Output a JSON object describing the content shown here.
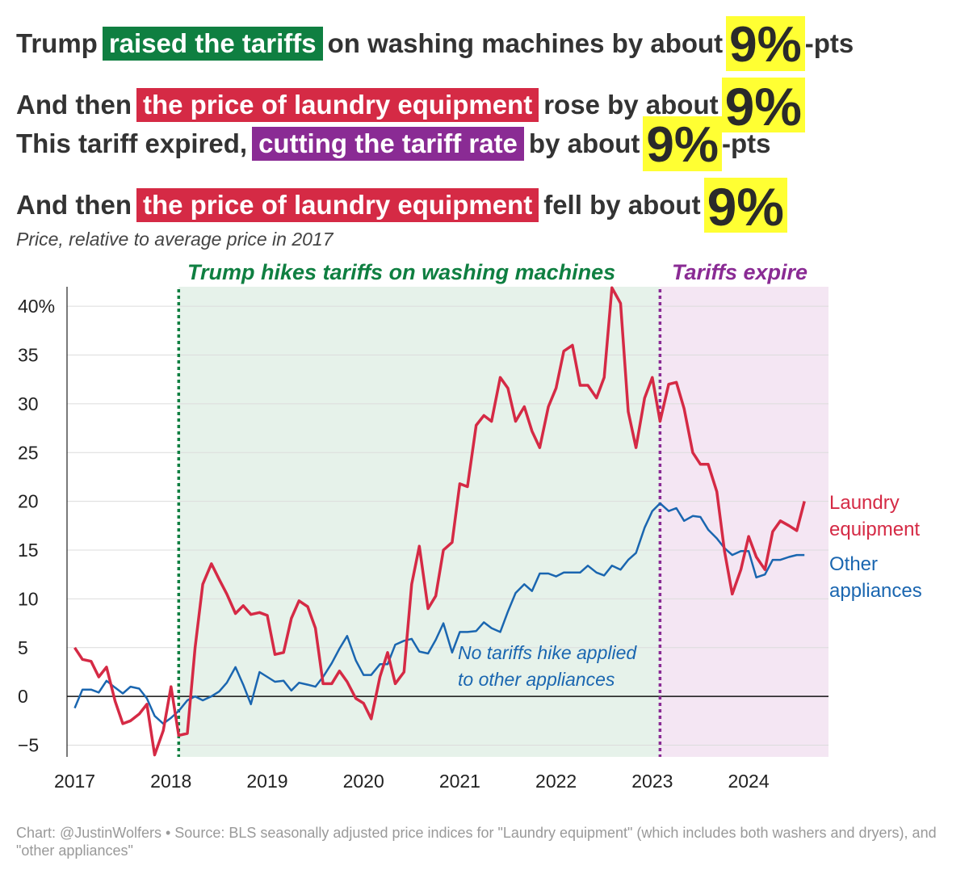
{
  "headline": {
    "line1": {
      "pre": "Trump",
      "highlight": "raised the tariffs",
      "mid": "on washing machines by about",
      "big": "9%",
      "post": "-pts"
    },
    "line2": {
      "pre": "And then",
      "highlight": "the price of laundry equipment",
      "mid": "rose by about",
      "big": "9%",
      "post": ""
    },
    "line3": {
      "pre": "This tariff expired,",
      "highlight": "cutting the tariff rate",
      "mid": "by about",
      "big": "9%",
      "post": "-pts"
    },
    "line4": {
      "pre": "And then",
      "highlight": "the price of laundry equipment",
      "mid": "fell by about",
      "big": "9%",
      "post": ""
    }
  },
  "subtitle": "Price, relative to average price in 2017",
  "footer": "Chart: @JustinWolfers • Source: BLS seasonally adjusted price indices for \"Laundry equipment\" (which includes both washers and dryers), and \"other appliances\"",
  "colors": {
    "laundry": "#d52a45",
    "other": "#1a66b0",
    "tariff_zone": "#e6f2ea",
    "tariff_line": "#0f7f41",
    "expire_zone": "#f4e6f3",
    "expire_line": "#8a2b94",
    "highlight_yellow": "#ffff33"
  },
  "chart_data": {
    "type": "line",
    "ylim": [
      -6.2,
      42
    ],
    "xlim": [
      2016.92,
      2024.83
    ],
    "y_ticks": [
      -5,
      0,
      5,
      10,
      15,
      20,
      25,
      30,
      35,
      40
    ],
    "y_tick_labels": [
      "−5",
      "0",
      "5",
      "10",
      "15",
      "20",
      "25",
      "30",
      "35",
      "40%"
    ],
    "x_ticks": [
      2017,
      2018,
      2019,
      2020,
      2021,
      2022,
      2023,
      2024
    ],
    "x_tick_labels": [
      "2017",
      "2018",
      "2019",
      "2020",
      "2021",
      "2022",
      "2023",
      "2024"
    ],
    "grid": "horizontal",
    "annotations": {
      "tariff_hike": {
        "x": 2018.08,
        "label": "Trump hikes tariffs on washing machines"
      },
      "tariff_expire": {
        "x": 2023.08,
        "label": "Tariffs expire"
      },
      "note": {
        "line1": "No tariffs hike applied",
        "line2": "to other appliances"
      }
    },
    "series": [
      {
        "name": "Laundry equipment",
        "label_lines": [
          "Laundry",
          "equipment"
        ],
        "color": "#d52a45",
        "x": [
          2017.0,
          2017.08,
          2017.17,
          2017.25,
          2017.33,
          2017.42,
          2017.5,
          2017.58,
          2017.67,
          2017.75,
          2017.83,
          2017.92,
          2018.0,
          2018.08,
          2018.17,
          2018.25,
          2018.33,
          2018.42,
          2018.5,
          2018.58,
          2018.67,
          2018.75,
          2018.83,
          2018.92,
          2019.0,
          2019.08,
          2019.17,
          2019.25,
          2019.33,
          2019.42,
          2019.5,
          2019.58,
          2019.67,
          2019.75,
          2019.83,
          2019.92,
          2020.0,
          2020.08,
          2020.17,
          2020.25,
          2020.33,
          2020.42,
          2020.5,
          2020.58,
          2020.67,
          2020.75,
          2020.83,
          2020.92,
          2021.0,
          2021.08,
          2021.17,
          2021.25,
          2021.33,
          2021.42,
          2021.5,
          2021.58,
          2021.67,
          2021.75,
          2021.83,
          2021.92,
          2022.0,
          2022.08,
          2022.17,
          2022.25,
          2022.33,
          2022.42,
          2022.5,
          2022.58,
          2022.67,
          2022.75,
          2022.83,
          2022.92,
          2023.0,
          2023.08,
          2023.17,
          2023.25,
          2023.33,
          2023.42,
          2023.5,
          2023.58,
          2023.67,
          2023.75,
          2023.83,
          2023.92,
          2024.0,
          2024.08,
          2024.17,
          2024.25,
          2024.33,
          2024.42,
          2024.5,
          2024.58
        ],
        "y": [
          5,
          3.8,
          3.6,
          2,
          3,
          -0.5,
          -2.8,
          -2.5,
          -1.8,
          -0.8,
          -6,
          -3.5,
          1,
          -4,
          -3.8,
          5,
          11.5,
          13.6,
          12,
          10.5,
          8.5,
          9.3,
          8.4,
          8.6,
          8.3,
          4.3,
          4.5,
          8,
          9.8,
          9.2,
          7,
          1.3,
          1.3,
          2.6,
          1.5,
          -0.2,
          -0.7,
          -2.3,
          2,
          4.5,
          1.3,
          2.5,
          11.5,
          15.4,
          9,
          10.3,
          15,
          15.8,
          21.8,
          21.5,
          27.8,
          28.8,
          28.2,
          32.7,
          31.6,
          28.2,
          29.7,
          27.2,
          25.5,
          29.7,
          31.6,
          35.4,
          36,
          31.9,
          31.9,
          30.6,
          32.7,
          41.9,
          40.3,
          29.2,
          25.5,
          30.6,
          32.7,
          28.2,
          32,
          32.2,
          29.5,
          25,
          23.8,
          23.8,
          21,
          14.9,
          10.5,
          13,
          16.4,
          14.3,
          13,
          16.9,
          18,
          17.5,
          17,
          20
        ]
      },
      {
        "name": "Other appliances",
        "label_lines": [
          "Other",
          "appliances"
        ],
        "color": "#1a66b0",
        "x": [
          2017.0,
          2017.08,
          2017.17,
          2017.25,
          2017.33,
          2017.42,
          2017.5,
          2017.58,
          2017.67,
          2017.75,
          2017.83,
          2017.92,
          2018.0,
          2018.08,
          2018.17,
          2018.25,
          2018.33,
          2018.42,
          2018.5,
          2018.58,
          2018.67,
          2018.75,
          2018.83,
          2018.92,
          2019.0,
          2019.08,
          2019.17,
          2019.25,
          2019.33,
          2019.42,
          2019.5,
          2019.58,
          2019.67,
          2019.75,
          2019.83,
          2019.92,
          2020.0,
          2020.08,
          2020.17,
          2020.25,
          2020.33,
          2020.42,
          2020.5,
          2020.58,
          2020.67,
          2020.75,
          2020.83,
          2020.92,
          2021.0,
          2021.08,
          2021.17,
          2021.25,
          2021.33,
          2021.42,
          2021.5,
          2021.58,
          2021.67,
          2021.75,
          2021.83,
          2021.92,
          2022.0,
          2022.08,
          2022.17,
          2022.25,
          2022.33,
          2022.42,
          2022.5,
          2022.58,
          2022.67,
          2022.75,
          2022.83,
          2022.92,
          2023.0,
          2023.08,
          2023.17,
          2023.25,
          2023.33,
          2023.42,
          2023.5,
          2023.58,
          2023.67,
          2023.75,
          2023.83,
          2023.92,
          2024.0,
          2024.08,
          2024.17,
          2024.25,
          2024.33,
          2024.42,
          2024.5,
          2024.58
        ],
        "y": [
          -1.2,
          0.7,
          0.7,
          0.4,
          1.6,
          0.9,
          0.3,
          1,
          0.8,
          -0.2,
          -2,
          -2.8,
          -2.2,
          -1.5,
          -0.4,
          0,
          -0.4,
          0,
          0.5,
          1.4,
          3,
          1.2,
          -0.8,
          2.5,
          2,
          1.5,
          1.6,
          0.6,
          1.4,
          1.2,
          1,
          2,
          3.4,
          4.9,
          6.2,
          3.7,
          2.2,
          2.2,
          3.3,
          3.3,
          5.3,
          5.7,
          5.9,
          4.6,
          4.4,
          5.8,
          7.5,
          4.5,
          6.6,
          6.6,
          6.7,
          7.6,
          7,
          6.6,
          8.7,
          10.6,
          11.5,
          10.8,
          12.6,
          12.6,
          12.3,
          12.7,
          12.7,
          12.7,
          13.4,
          12.7,
          12.4,
          13.4,
          13,
          14,
          14.7,
          17.3,
          19,
          19.8,
          19,
          19.3,
          18,
          18.5,
          18.4,
          17.1,
          16.2,
          15.2,
          14.5,
          14.9,
          14.9,
          12.2,
          12.5,
          14,
          14,
          14.3,
          14.5,
          14.5
        ]
      }
    ]
  }
}
